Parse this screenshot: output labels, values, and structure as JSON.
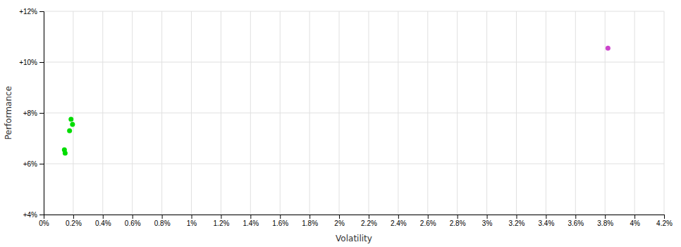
{
  "chart_data": {
    "type": "scatter",
    "xlabel": "Volatility",
    "ylabel": "Performance",
    "xlim": [
      0,
      4.2
    ],
    "ylim": [
      4,
      12
    ],
    "xticks": [
      {
        "value": 0,
        "label": "0%"
      },
      {
        "value": 0.2,
        "label": "0.2%"
      },
      {
        "value": 0.4,
        "label": "0.4%"
      },
      {
        "value": 0.6,
        "label": "0.6%"
      },
      {
        "value": 0.8,
        "label": "0.8%"
      },
      {
        "value": 1.0,
        "label": "1%"
      },
      {
        "value": 1.2,
        "label": "1.2%"
      },
      {
        "value": 1.4,
        "label": "1.4%"
      },
      {
        "value": 1.6,
        "label": "1.6%"
      },
      {
        "value": 1.8,
        "label": "1.8%"
      },
      {
        "value": 2.0,
        "label": "2%"
      },
      {
        "value": 2.2,
        "label": "2.2%"
      },
      {
        "value": 2.4,
        "label": "2.4%"
      },
      {
        "value": 2.6,
        "label": "2.6%"
      },
      {
        "value": 2.8,
        "label": "2.8%"
      },
      {
        "value": 3.0,
        "label": "3%"
      },
      {
        "value": 3.2,
        "label": "3.2%"
      },
      {
        "value": 3.4,
        "label": "3.4%"
      },
      {
        "value": 3.6,
        "label": "3.6%"
      },
      {
        "value": 3.8,
        "label": "3.8%"
      },
      {
        "value": 4.0,
        "label": "4%"
      },
      {
        "value": 4.2,
        "label": "4.2%"
      }
    ],
    "yticks": [
      {
        "value": 4,
        "label": "+4%"
      },
      {
        "value": 6,
        "label": "+6%"
      },
      {
        "value": 8,
        "label": "+8%"
      },
      {
        "value": 10,
        "label": "+10%"
      },
      {
        "value": 12,
        "label": "+12%"
      }
    ],
    "grid": true,
    "series": [
      {
        "color": "#00dd00",
        "x": [
          0.185,
          0.195,
          0.175,
          0.14,
          0.145
        ],
        "values": [
          7.75,
          7.55,
          7.3,
          6.55,
          6.42
        ]
      },
      {
        "color": "#cc44cc",
        "x": [
          3.82
        ],
        "values": [
          10.55
        ]
      }
    ]
  }
}
